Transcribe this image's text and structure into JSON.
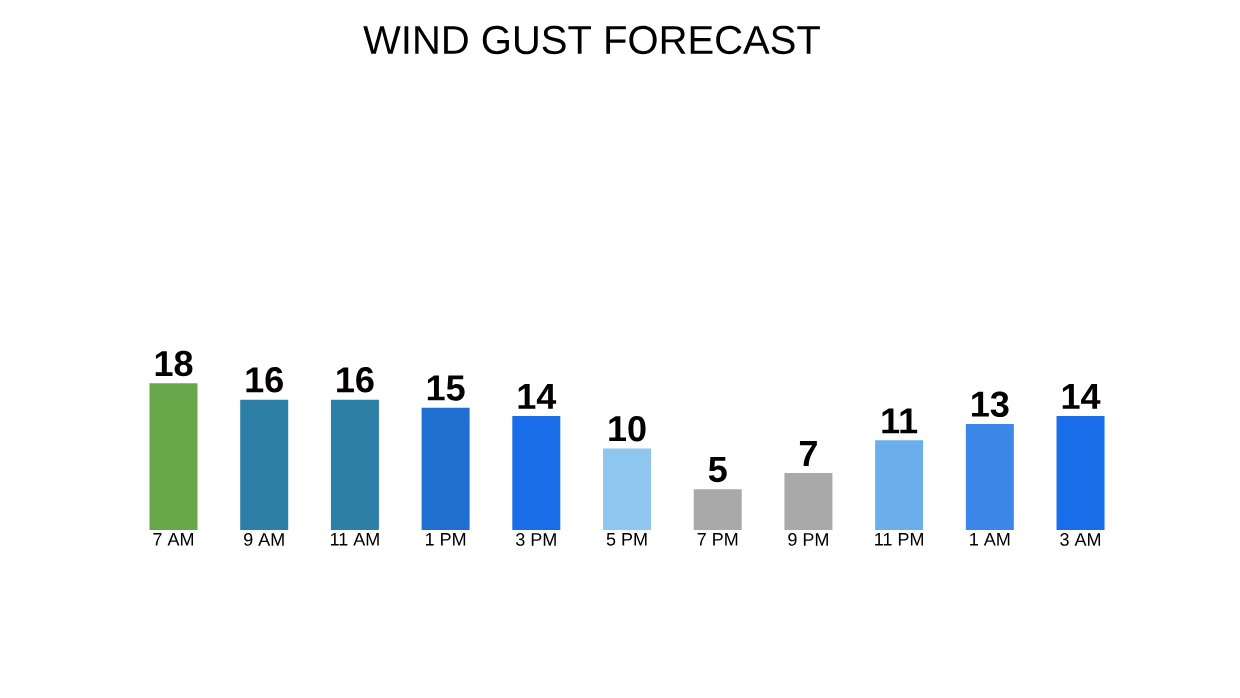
{
  "chart_data": {
    "type": "bar",
    "title": "WIND GUST FORECAST",
    "categories": [
      "7 AM",
      "9 AM",
      "11 AM",
      "1 PM",
      "3 PM",
      "5 PM",
      "7 PM",
      "9 PM",
      "11 PM",
      "1 AM",
      "3 AM"
    ],
    "values": [
      18,
      16,
      16,
      15,
      14,
      10,
      5,
      7,
      11,
      13,
      14
    ],
    "colors": [
      "#67a94a",
      "#2e7fa8",
      "#2e7fa8",
      "#1f6fd1",
      "#1a6de8",
      "#8ec6ef",
      "#a9a9a9",
      "#a9a9a9",
      "#6aafec",
      "#3a87e8",
      "#1a6de8"
    ],
    "data_labels": true
  }
}
